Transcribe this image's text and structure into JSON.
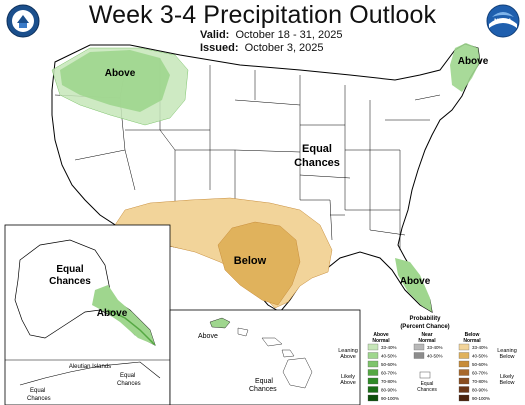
{
  "title": "Week 3-4 Precipitation Outlook",
  "valid_label": "Valid:",
  "valid_dates": "October 18 - 31, 2025",
  "issued_label": "Issued:",
  "issued_date": "October 3, 2025",
  "map_labels": {
    "northwest": "Above",
    "northeast": "Above",
    "central": "Equal Chances",
    "south": "Below",
    "florida": "Above",
    "alaska_main": "Equal Chances",
    "alaska_se": "Above",
    "aleutian_islands": "Aleutian Islands",
    "aleutian_ec1": "Equal Chances",
    "aleutian_ec2": "Equal Chances",
    "hawaii_above": "Above",
    "hawaii_ec": "Equal Chances"
  },
  "legend": {
    "title": "Probability (Percent Chance)",
    "above_header": "Above Normal",
    "near_header": "Near Normal",
    "below_header": "Below Normal",
    "above_levels": [
      "33-40%",
      "40-50%",
      "50-60%",
      "60-70%",
      "70-80%",
      "80-90%",
      "90-100%"
    ],
    "near_levels": [
      "33-40%",
      "40-50%"
    ],
    "below_levels": [
      "33-40%",
      "40-50%",
      "50-60%",
      "60-70%",
      "70-80%",
      "80-90%",
      "90-100%"
    ],
    "equal_chances": "Equal Chances",
    "leaning_above": "Leaning Above",
    "likely_above": "Likely Above",
    "leaning_below": "Leaning Below",
    "likely_below": "Likely Below"
  },
  "colors": {
    "above": [
      "#c6e6b8",
      "#9fd68e",
      "#7ec46c",
      "#55a843",
      "#2f8b27",
      "#1a6e16",
      "#0d4f0b"
    ],
    "near": [
      "#b8b8b8",
      "#8c8c8c"
    ],
    "below": [
      "#f2d49a",
      "#e0b25c",
      "#c78c3a",
      "#a8682a",
      "#8a4d1f",
      "#6b3616",
      "#4a220c"
    ]
  },
  "logos": [
    "doc-logo-icon",
    "noaa-logo-icon"
  ]
}
